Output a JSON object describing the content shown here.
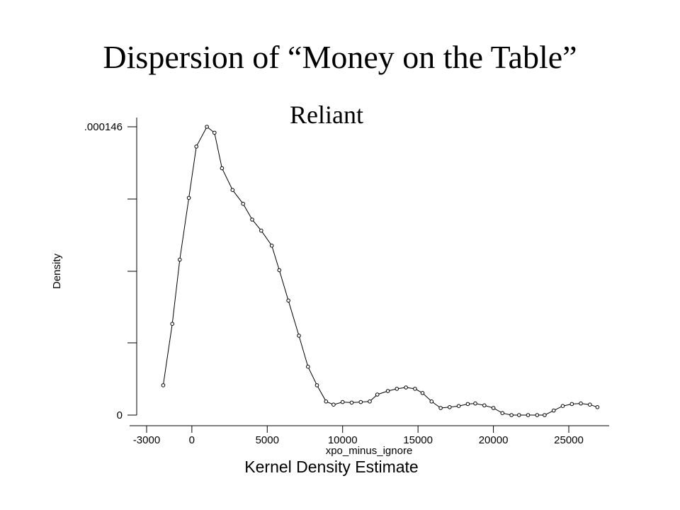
{
  "slide": {
    "title": "Dispersion of “Money on the Table”",
    "subtitle": "Reliant"
  },
  "chart_data": {
    "type": "line",
    "xlabel": "xpo_minus_ignore",
    "ylabel": "Density",
    "caption": "Kernel Density Estimate",
    "x_ticks": [
      -3000,
      0,
      5000,
      10000,
      15000,
      20000,
      25000
    ],
    "x_tick_labels": [
      "-3000",
      "0",
      "5000",
      "10000",
      "15000",
      "20000",
      "25000"
    ],
    "y_tick_labels": [
      ".000146",
      "0"
    ],
    "y_ticks": [
      0.000146,
      0
    ],
    "ylim": [
      0,
      0.000146
    ],
    "grid": false,
    "markers": "hollow-circle",
    "series": [
      {
        "x": [
          -1900,
          -1300,
          -800,
          -200,
          300,
          1000,
          1500,
          2000,
          2700,
          3400,
          4000,
          4600,
          5300,
          5800,
          6400,
          7100,
          7700,
          8300,
          8900,
          9400,
          10000,
          10600,
          11200,
          11800,
          12300,
          13000,
          13600,
          14200,
          14800,
          15300,
          15900,
          16500,
          17100,
          17700,
          18300,
          18800,
          19400,
          20000,
          20600,
          21200,
          21700,
          22300,
          22900,
          23400,
          24000,
          24600,
          25200,
          25800,
          26400,
          26900
        ],
        "y": [
          1.51e-05,
          4.62e-05,
          7.87e-05,
          0.00011,
          0.000136,
          0.000146,
          0.000143,
          0.000125,
          0.000114,
          0.000107,
          9.9e-05,
          9.34e-05,
          8.58e-05,
          7.34e-05,
          5.8e-05,
          4.02e-05,
          2.45e-05,
          1.51e-05,
          6.9e-06,
          5.3e-06,
          6.6e-06,
          6.3e-06,
          6.6e-06,
          6.9e-06,
          1.04e-05,
          1.22e-05,
          1.33e-05,
          1.4e-05,
          1.33e-05,
          1.12e-05,
          6.9e-06,
          3.6e-06,
          4e-06,
          4.6e-06,
          5.6e-06,
          5.9e-06,
          4.9e-06,
          3.6e-06,
          1e-06,
          0,
          0,
          0,
          0,
          0,
          2.3e-06,
          4.6e-06,
          5.6e-06,
          5.9e-06,
          5.3e-06,
          4e-06
        ]
      }
    ]
  }
}
